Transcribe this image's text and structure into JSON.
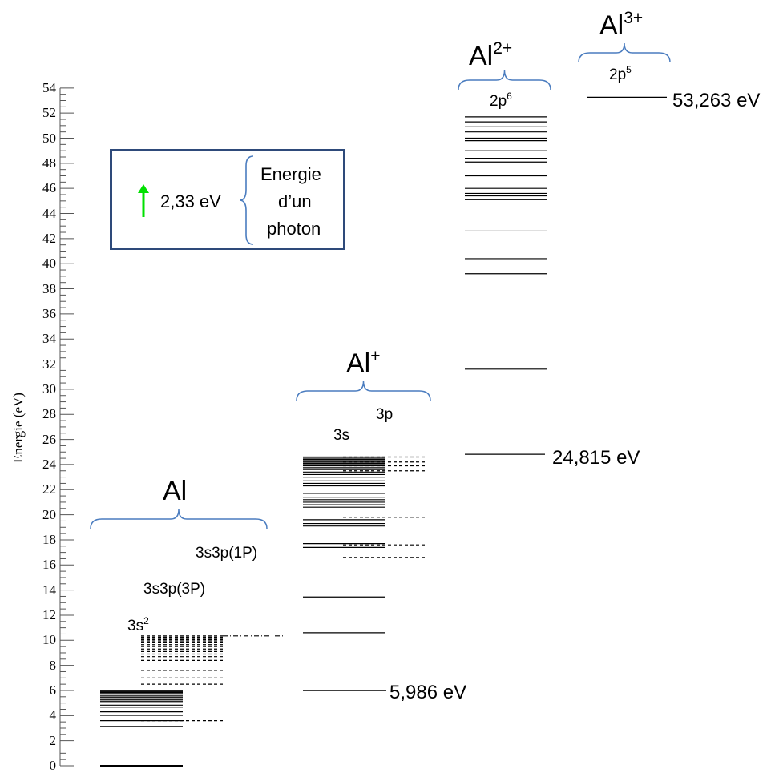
{
  "axis": {
    "label": "Energie (eV)",
    "ticks": [
      "0",
      "2",
      "4",
      "6",
      "8",
      "10",
      "12",
      "14",
      "16",
      "18",
      "20",
      "22",
      "24",
      "26",
      "28",
      "30",
      "32",
      "34",
      "36",
      "38",
      "40",
      "42",
      "44",
      "46",
      "48",
      "50",
      "52",
      "54"
    ]
  },
  "species": {
    "al": {
      "name": "Al",
      "sup": ""
    },
    "alp": {
      "name": "Al",
      "sup": "+"
    },
    "al2": {
      "name": "Al",
      "sup": "2+"
    },
    "al3": {
      "name": "Al",
      "sup": "3+"
    }
  },
  "configs": {
    "al_3s2": {
      "base": "3s",
      "sup": "2"
    },
    "al_3P": "3s3p(3P)",
    "al_1P": "3s3p(1P)",
    "alp_3s": "3s",
    "alp_3p": "3p",
    "al2_2p6": {
      "base": "2p",
      "sup": "6"
    },
    "al3_2p5": {
      "base": "2p",
      "sup": "5"
    }
  },
  "ionization": {
    "al": "5,986 eV",
    "alp": "24,815 eV",
    "al2": "53,263 eV"
  },
  "legend": {
    "value": "2,33 eV",
    "line1": "Energie",
    "line2": "d’un",
    "line3": "photon",
    "arrow_color": "#00e000"
  },
  "colors": {
    "brace": "#4a7cbf",
    "box": "#2e4a7a"
  },
  "chart_data": {
    "type": "energy-level",
    "ylabel": "Energie (eV)",
    "ylim": [
      0,
      54
    ],
    "series": [
      {
        "name": "Al 3s2",
        "style": "solid",
        "values": [
          0,
          3.14,
          3.6,
          4.02,
          4.3,
          4.67,
          4.83,
          5.12,
          5.25,
          5.44,
          5.56,
          5.7,
          5.8,
          5.88,
          5.95
        ]
      },
      {
        "name": "Al 3s3p(3P)",
        "style": "dashed",
        "values": [
          3.6,
          6.5,
          7.0,
          7.6,
          8.4,
          8.7,
          8.9,
          9.1,
          9.3,
          9.5,
          9.65,
          9.8,
          9.95,
          10.05,
          10.15,
          10.25,
          10.35
        ]
      },
      {
        "name": "Al 3s3p(1P)",
        "style": "dash-dot",
        "values": [
          10.35
        ]
      },
      {
        "name": "Al+ 3s",
        "style": "solid",
        "values": [
          5.986,
          10.6,
          13.45,
          17.4,
          17.7,
          19.1,
          19.3,
          19.6,
          20.6,
          20.8,
          21.0,
          21.2,
          21.4,
          21.7,
          22.3,
          22.5,
          22.7,
          23.0,
          23.2,
          23.4,
          23.6,
          23.75,
          23.9,
          24.0,
          24.1,
          24.2,
          24.3,
          24.4,
          24.5,
          24.6
        ]
      },
      {
        "name": "Al+ 3p",
        "style": "dashed",
        "values": [
          16.6,
          17.6,
          19.8,
          23.5,
          23.9,
          24.2,
          24.6
        ]
      },
      {
        "name": "Al2+ 2p6",
        "style": "solid",
        "values": [
          24.815,
          31.6,
          39.2,
          40.4,
          42.6,
          45.1,
          45.4,
          45.6,
          46.0,
          47.0,
          48.1,
          48.4,
          49.0,
          49.8,
          50.0,
          50.5,
          50.9,
          51.3,
          51.7
        ]
      },
      {
        "name": "Al3+ 2p5",
        "style": "solid",
        "values": [
          53.263
        ]
      }
    ],
    "annotations": [
      "5,986 eV",
      "24,815 eV",
      "53,263 eV",
      "2,33 eV"
    ]
  }
}
